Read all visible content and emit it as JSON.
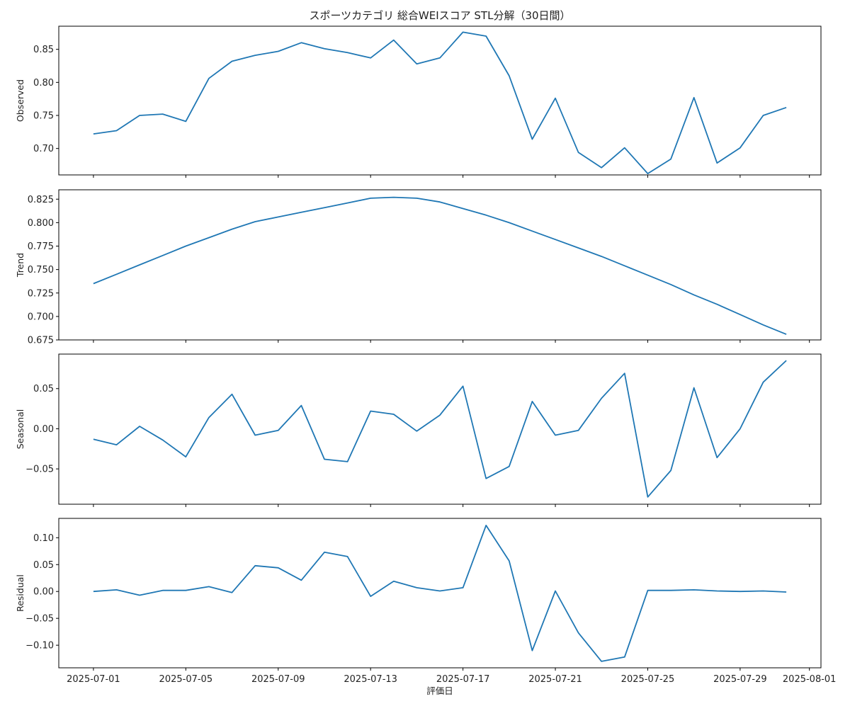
{
  "chart_data": {
    "type": "line",
    "title": "スポーツカテゴリ 総合WEIスコア STL分解（30日間）",
    "xlabel": "評価日",
    "x": [
      "2025-07-01",
      "2025-07-02",
      "2025-07-03",
      "2025-07-04",
      "2025-07-05",
      "2025-07-06",
      "2025-07-07",
      "2025-07-08",
      "2025-07-09",
      "2025-07-10",
      "2025-07-11",
      "2025-07-12",
      "2025-07-13",
      "2025-07-14",
      "2025-07-15",
      "2025-07-16",
      "2025-07-17",
      "2025-07-18",
      "2025-07-19",
      "2025-07-20",
      "2025-07-21",
      "2025-07-22",
      "2025-07-23",
      "2025-07-24",
      "2025-07-25",
      "2025-07-26",
      "2025-07-27",
      "2025-07-28",
      "2025-07-29",
      "2025-07-30",
      "2025-07-31"
    ],
    "x_ticks": [
      "2025-07-01",
      "2025-07-05",
      "2025-07-09",
      "2025-07-13",
      "2025-07-17",
      "2025-07-21",
      "2025-07-25",
      "2025-07-29",
      "2025-08-01"
    ],
    "xlim": [
      "2025-06-29.5",
      "2025-08-01.5"
    ],
    "color": "#1f77b4",
    "grid": false,
    "panels": [
      {
        "ylabel": "Observed",
        "ylim": [
          0.66,
          0.885
        ],
        "yticks": [
          0.7,
          0.75,
          0.8,
          0.85
        ],
        "ytick_labels": [
          "0.70",
          "0.75",
          "0.80",
          "0.85"
        ],
        "values": [
          0.722,
          0.727,
          0.75,
          0.752,
          0.741,
          0.806,
          0.832,
          0.841,
          0.847,
          0.86,
          0.851,
          0.845,
          0.837,
          0.864,
          0.828,
          0.837,
          0.876,
          0.87,
          0.81,
          0.714,
          0.776,
          0.694,
          0.671,
          0.701,
          0.662,
          0.684,
          0.777,
          0.678,
          0.701,
          0.75,
          0.762
        ]
      },
      {
        "ylabel": "Trend",
        "ylim": [
          0.675,
          0.835
        ],
        "yticks": [
          0.675,
          0.7,
          0.725,
          0.75,
          0.775,
          0.8,
          0.825
        ],
        "ytick_labels": [
          "0.675",
          "0.700",
          "0.725",
          "0.750",
          "0.775",
          "0.800",
          "0.825"
        ],
        "values": [
          0.735,
          0.745,
          0.755,
          0.765,
          0.775,
          0.784,
          0.793,
          0.801,
          0.806,
          0.811,
          0.816,
          0.821,
          0.826,
          0.827,
          0.826,
          0.822,
          0.815,
          0.808,
          0.8,
          0.791,
          0.782,
          0.773,
          0.764,
          0.754,
          0.744,
          0.734,
          0.723,
          0.713,
          0.702,
          0.691,
          0.681
        ]
      },
      {
        "ylabel": "Seasonal",
        "ylim": [
          -0.094,
          0.093
        ],
        "yticks": [
          -0.05,
          0.0,
          0.05
        ],
        "ytick_labels": [
          "−0.05",
          "0.00",
          "0.05"
        ],
        "values": [
          -0.013,
          -0.02,
          0.003,
          -0.014,
          -0.035,
          0.014,
          0.043,
          -0.008,
          -0.002,
          0.029,
          -0.038,
          -0.041,
          0.022,
          0.018,
          -0.003,
          0.017,
          0.053,
          -0.062,
          -0.047,
          0.034,
          -0.008,
          -0.002,
          0.038,
          0.069,
          -0.085,
          -0.052,
          0.051,
          -0.036,
          0.0,
          0.058,
          0.085
        ]
      },
      {
        "ylabel": "Residual",
        "ylim": [
          -0.142,
          0.136
        ],
        "yticks": [
          -0.1,
          -0.05,
          0.0,
          0.05,
          0.1
        ],
        "ytick_labels": [
          "−0.10",
          "−0.05",
          "0.00",
          "0.05",
          "0.10"
        ],
        "values": [
          0.0,
          0.003,
          -0.007,
          0.002,
          0.002,
          0.009,
          -0.002,
          0.048,
          0.044,
          0.021,
          0.073,
          0.065,
          -0.009,
          0.019,
          0.007,
          0.001,
          0.007,
          0.123,
          0.057,
          -0.11,
          0.001,
          -0.077,
          -0.13,
          -0.122,
          0.002,
          0.002,
          0.003,
          0.001,
          0.0,
          0.001,
          -0.001
        ]
      }
    ]
  }
}
